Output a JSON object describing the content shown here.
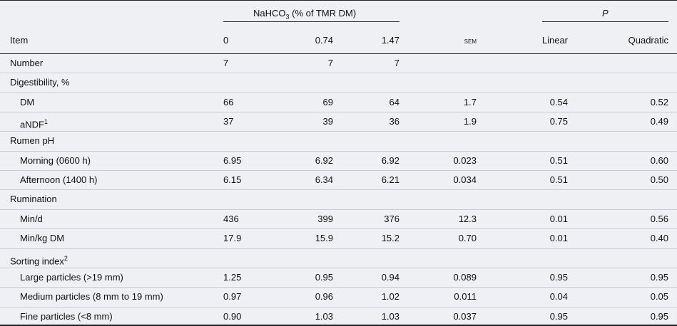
{
  "header": {
    "group": {
      "text": "NaHCO",
      "sub": "3",
      "rest": " (% of TMR DM)"
    },
    "p": "P",
    "columns": [
      "Item",
      "0",
      "0.74",
      "1.47",
      "SEM",
      "Linear",
      "Quadratic"
    ]
  },
  "rows": [
    {
      "label": "Number",
      "values": [
        "7",
        "7",
        "7"
      ]
    },
    {
      "label": "Digestibility, %"
    },
    {
      "label": "DM",
      "indent": true,
      "values": [
        "66",
        "69",
        "64",
        "1.7",
        "0.54",
        "0.52"
      ]
    },
    {
      "label": "aNDF",
      "sup": "1",
      "indent": true,
      "values": [
        "37",
        "39",
        "36",
        "1.9",
        "0.75",
        "0.49"
      ]
    },
    {
      "label": "Rumen pH"
    },
    {
      "label": "Morning (0600 h)",
      "indent": true,
      "values": [
        "6.95",
        "6.92",
        "6.92",
        "0.023",
        "0.51",
        "0.60"
      ]
    },
    {
      "label": "Afternoon (1400 h)",
      "indent": true,
      "values": [
        "6.15",
        "6.34",
        "6.21",
        "0.034",
        "0.51",
        "0.50"
      ]
    },
    {
      "label": "Rumination"
    },
    {
      "label": "Min/d",
      "indent": true,
      "values": [
        "436",
        "399",
        "376",
        "12.3",
        "0.01",
        "0.56"
      ]
    },
    {
      "label": "Min/kg DM",
      "indent": true,
      "values": [
        "17.9",
        "15.9",
        "15.2",
        "0.70",
        "0.01",
        "0.40"
      ]
    },
    {
      "label": "Sorting index",
      "sup": "2"
    },
    {
      "label": "Large particles (>19 mm)",
      "indent": true,
      "values": [
        "1.25",
        "0.95",
        "0.94",
        "0.089",
        "0.95",
        "0.95"
      ]
    },
    {
      "label": "Medium particles (8 mm to 19 mm)",
      "indent": true,
      "values": [
        "0.97",
        "0.96",
        "1.02",
        "0.011",
        "0.04",
        "0.05"
      ]
    },
    {
      "label": "Fine particles (<8 mm)",
      "indent": true,
      "values": [
        "0.90",
        "1.03",
        "1.03",
        "0.037",
        "0.95",
        "0.95"
      ]
    }
  ]
}
